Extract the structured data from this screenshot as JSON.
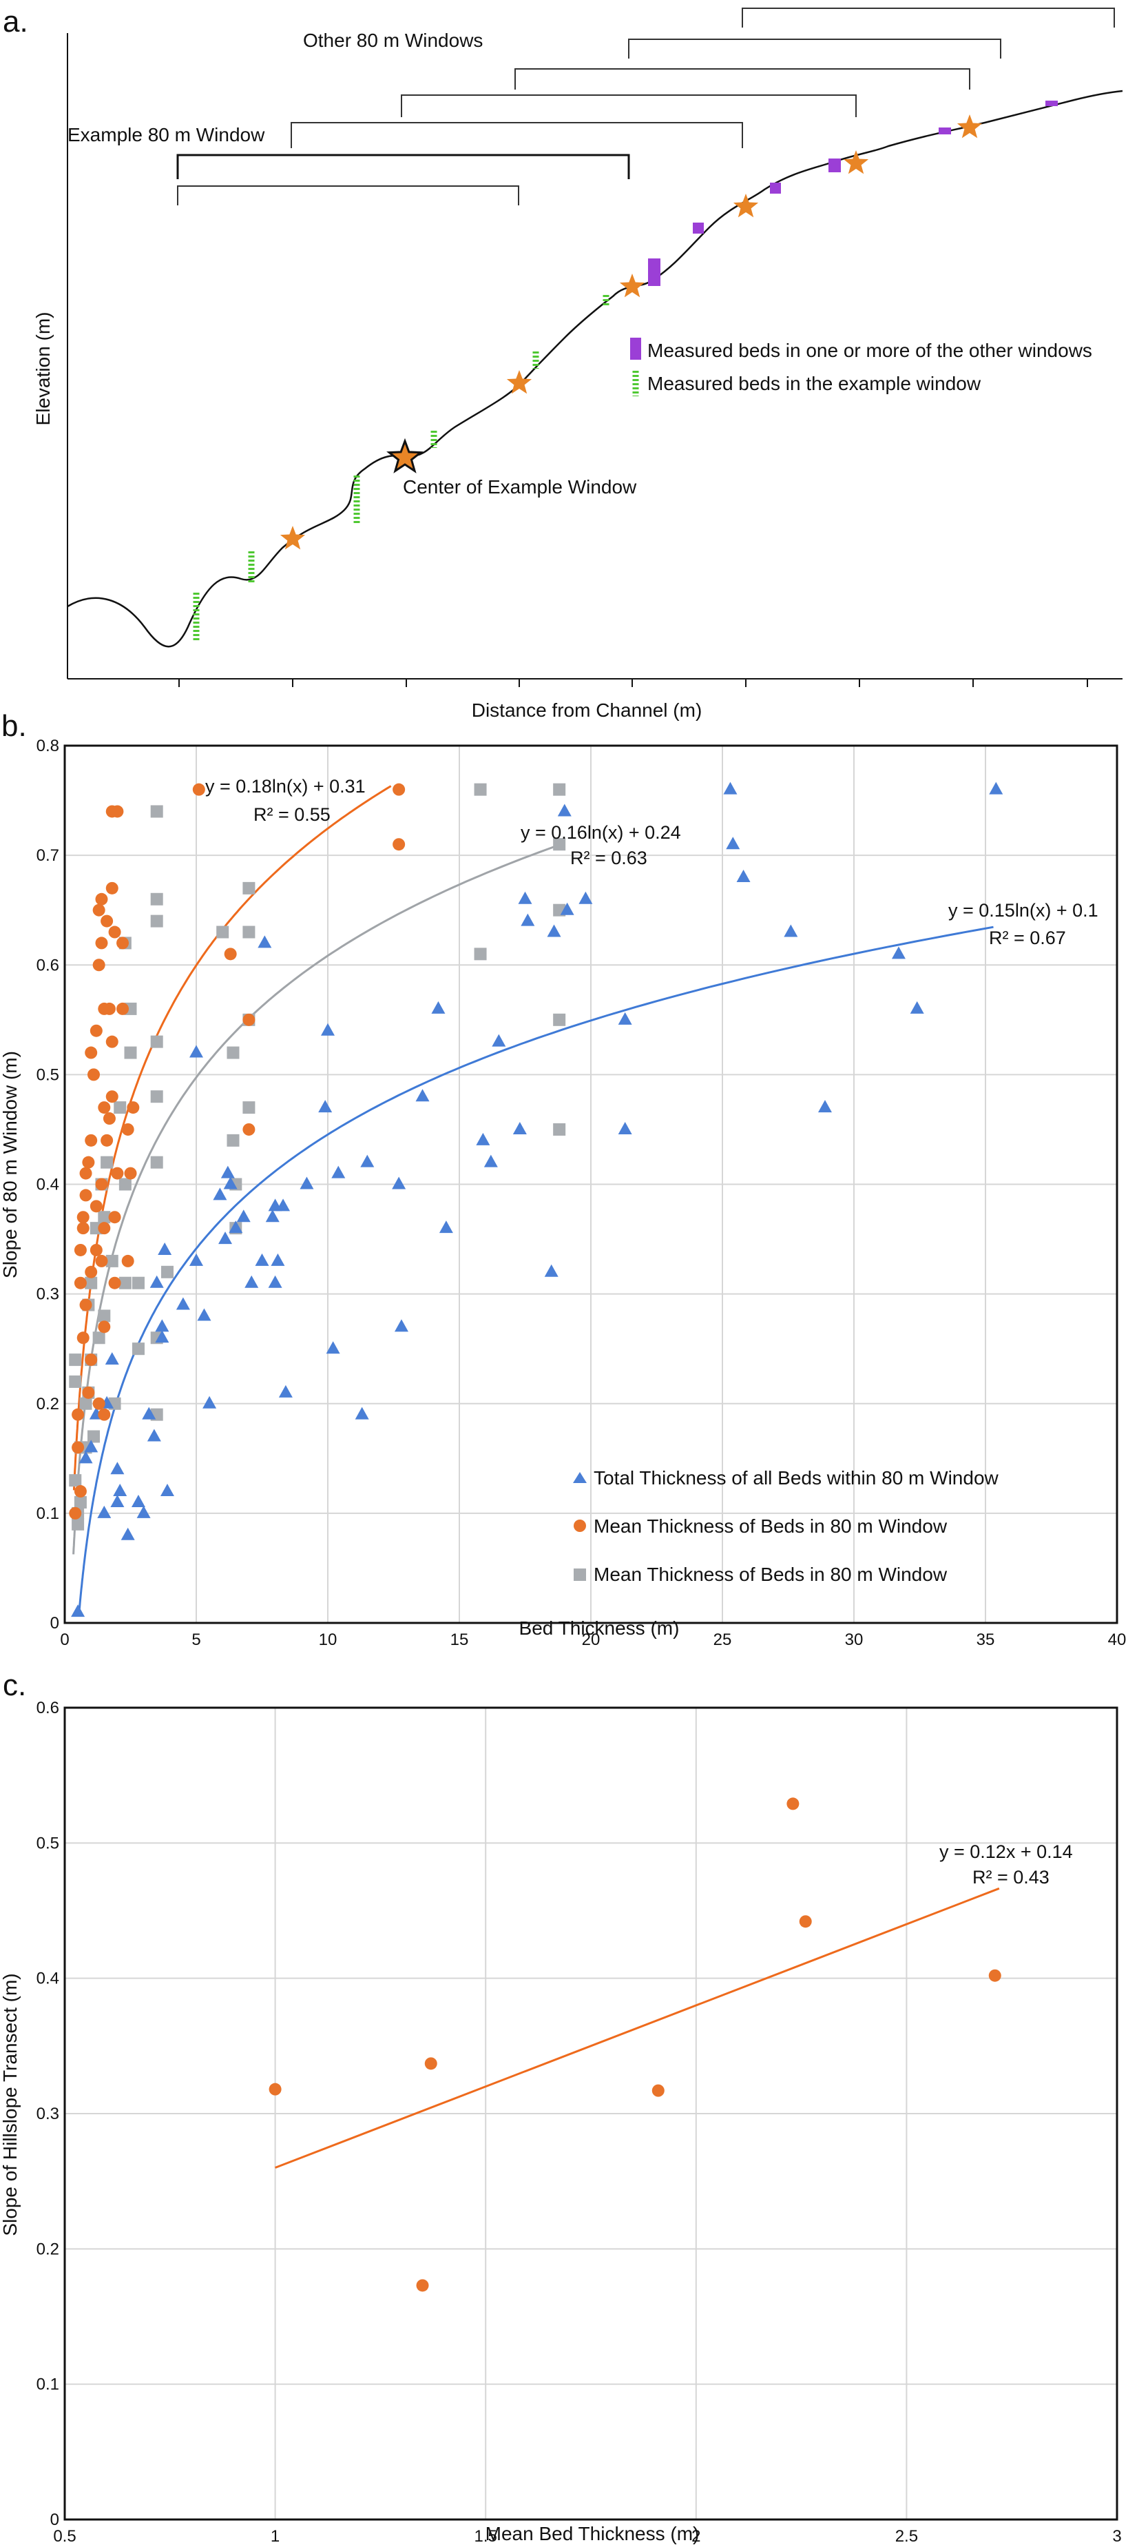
{
  "chart_data": [
    {
      "panel": "a.",
      "type": "diagram",
      "xlabel": "Distance from Channel (m)",
      "ylabel": "Elevation (m)",
      "labels": {
        "other_windows": "Other 80 m Windows",
        "example_window": "Example 80 m Window",
        "center_label": "Center of Example Window"
      },
      "legend": [
        {
          "label": "Measured beds in one or more of the other windows",
          "color": "#9b3fd6"
        },
        {
          "label": "Measured beds in the example window",
          "color": "#4fc832"
        }
      ],
      "colors": {
        "star": "#e88526",
        "purple": "#9b3fd6",
        "green": "#4fc832"
      }
    },
    {
      "panel": "b.",
      "type": "scatter",
      "xlabel": "Bed Thickness (m)",
      "ylabel": "Slope of 80 m Window (m)",
      "xlim": [
        0,
        40
      ],
      "ylim": [
        0,
        0.8
      ],
      "xticks": [
        "0",
        "5",
        "10",
        "15",
        "20",
        "25",
        "30",
        "35",
        "40"
      ],
      "yticks": [
        "0",
        "0.1",
        "0.2",
        "0.3",
        "0.4",
        "0.5",
        "0.6",
        "0.7",
        "0.8"
      ],
      "grid": true,
      "legend_position": "bottom-right",
      "series": [
        {
          "name": "Total Thickness of all Beds within 80 m Window",
          "marker": "triangle",
          "color": "#4a7fd6",
          "fit": {
            "a": 0.15,
            "b": 0.1,
            "label": "y = 0.15ln(x) + 0.1",
            "r2": "R² = 0.67"
          },
          "points": [
            [
              0.5,
              0.01
            ],
            [
              0.8,
              0.15
            ],
            [
              1.0,
              0.16
            ],
            [
              1.2,
              0.19
            ],
            [
              1.5,
              0.1
            ],
            [
              1.6,
              0.2
            ],
            [
              1.8,
              0.24
            ],
            [
              2.0,
              0.11
            ],
            [
              2.1,
              0.12
            ],
            [
              2.0,
              0.14
            ],
            [
              2.4,
              0.08
            ],
            [
              2.8,
              0.11
            ],
            [
              3.0,
              0.1
            ],
            [
              3.2,
              0.19
            ],
            [
              3.4,
              0.17
            ],
            [
              3.5,
              0.31
            ],
            [
              3.7,
              0.26
            ],
            [
              3.7,
              0.27
            ],
            [
              3.8,
              0.34
            ],
            [
              3.9,
              0.12
            ],
            [
              4.5,
              0.29
            ],
            [
              5.0,
              0.33
            ],
            [
              5.0,
              0.52
            ],
            [
              5.3,
              0.28
            ],
            [
              5.5,
              0.2
            ],
            [
              5.9,
              0.39
            ],
            [
              6.1,
              0.35
            ],
            [
              6.2,
              0.41
            ],
            [
              6.3,
              0.4
            ],
            [
              6.5,
              0.36
            ],
            [
              6.8,
              0.37
            ],
            [
              7.1,
              0.31
            ],
            [
              7.5,
              0.33
            ],
            [
              7.6,
              0.62
            ],
            [
              7.9,
              0.37
            ],
            [
              8.0,
              0.38
            ],
            [
              8.0,
              0.31
            ],
            [
              8.1,
              0.33
            ],
            [
              8.3,
              0.38
            ],
            [
              8.4,
              0.21
            ],
            [
              9.2,
              0.4
            ],
            [
              9.9,
              0.47
            ],
            [
              10.0,
              0.54
            ],
            [
              10.2,
              0.25
            ],
            [
              10.4,
              0.41
            ],
            [
              11.3,
              0.19
            ],
            [
              11.5,
              0.42
            ],
            [
              12.7,
              0.4
            ],
            [
              12.8,
              0.27
            ],
            [
              13.6,
              0.48
            ],
            [
              14.2,
              0.56
            ],
            [
              14.5,
              0.36
            ],
            [
              15.9,
              0.44
            ],
            [
              16.2,
              0.42
            ],
            [
              16.5,
              0.53
            ],
            [
              17.3,
              0.45
            ],
            [
              17.5,
              0.66
            ],
            [
              17.6,
              0.64
            ],
            [
              18.5,
              0.32
            ],
            [
              18.6,
              0.63
            ],
            [
              19.0,
              0.74
            ],
            [
              19.1,
              0.65
            ],
            [
              19.8,
              0.66
            ],
            [
              21.3,
              0.45
            ],
            [
              21.3,
              0.55
            ],
            [
              25.3,
              0.76
            ],
            [
              25.4,
              0.71
            ],
            [
              25.8,
              0.68
            ],
            [
              27.6,
              0.63
            ],
            [
              28.9,
              0.47
            ],
            [
              31.7,
              0.61
            ],
            [
              32.4,
              0.56
            ],
            [
              35.4,
              0.76
            ]
          ]
        },
        {
          "name": "Mean Thickness  of Beds in 80 m Window",
          "marker": "circle",
          "color": "#e8732a",
          "fit": {
            "a": 0.18,
            "b": 0.31,
            "label": "y = 0.18ln(x) + 0.31",
            "r2": "R² = 0.55"
          },
          "points": [
            [
              0.4,
              0.1
            ],
            [
              0.5,
              0.16
            ],
            [
              0.5,
              0.19
            ],
            [
              0.6,
              0.12
            ],
            [
              0.6,
              0.31
            ],
            [
              0.6,
              0.34
            ],
            [
              0.7,
              0.26
            ],
            [
              0.7,
              0.36
            ],
            [
              0.7,
              0.37
            ],
            [
              0.8,
              0.39
            ],
            [
              0.8,
              0.41
            ],
            [
              0.8,
              0.29
            ],
            [
              0.9,
              0.21
            ],
            [
              0.9,
              0.42
            ],
            [
              1.0,
              0.32
            ],
            [
              1.0,
              0.44
            ],
            [
              1.0,
              0.52
            ],
            [
              1.0,
              0.24
            ],
            [
              1.1,
              0.5
            ],
            [
              1.2,
              0.34
            ],
            [
              1.2,
              0.38
            ],
            [
              1.2,
              0.54
            ],
            [
              1.3,
              0.6
            ],
            [
              1.3,
              0.65
            ],
            [
              1.3,
              0.2
            ],
            [
              1.4,
              0.33
            ],
            [
              1.4,
              0.4
            ],
            [
              1.4,
              0.62
            ],
            [
              1.4,
              0.66
            ],
            [
              1.5,
              0.19
            ],
            [
              1.5,
              0.27
            ],
            [
              1.5,
              0.36
            ],
            [
              1.5,
              0.47
            ],
            [
              1.5,
              0.56
            ],
            [
              1.6,
              0.44
            ],
            [
              1.6,
              0.64
            ],
            [
              1.7,
              0.46
            ],
            [
              1.7,
              0.56
            ],
            [
              1.8,
              0.48
            ],
            [
              1.8,
              0.53
            ],
            [
              1.8,
              0.67
            ],
            [
              1.8,
              0.74
            ],
            [
              1.9,
              0.31
            ],
            [
              1.9,
              0.37
            ],
            [
              1.9,
              0.63
            ],
            [
              2.0,
              0.41
            ],
            [
              2.0,
              0.74
            ],
            [
              2.2,
              0.56
            ],
            [
              2.2,
              0.62
            ],
            [
              2.4,
              0.33
            ],
            [
              2.4,
              0.45
            ],
            [
              2.5,
              0.41
            ],
            [
              2.6,
              0.47
            ],
            [
              5.1,
              0.76
            ],
            [
              6.3,
              0.61
            ],
            [
              7.0,
              0.45
            ],
            [
              7.0,
              0.55
            ],
            [
              12.7,
              0.76
            ],
            [
              12.7,
              0.71
            ]
          ]
        },
        {
          "name": "Mean Thickness  of Beds in 80 m Window",
          "marker": "square",
          "color": "#a8acb0",
          "fit": {
            "a": 0.16,
            "b": 0.24,
            "label": "y = 0.16ln(x) + 0.24",
            "r2": "R² = 0.63"
          },
          "points": [
            [
              0.4,
              0.13
            ],
            [
              0.4,
              0.22
            ],
            [
              0.4,
              0.24
            ],
            [
              0.5,
              0.09
            ],
            [
              0.5,
              0.1
            ],
            [
              0.6,
              0.11
            ],
            [
              0.6,
              0.16
            ],
            [
              0.8,
              0.16
            ],
            [
              0.8,
              0.2
            ],
            [
              0.9,
              0.21
            ],
            [
              0.9,
              0.29
            ],
            [
              1.0,
              0.31
            ],
            [
              1.0,
              0.24
            ],
            [
              1.1,
              0.17
            ],
            [
              1.2,
              0.36
            ],
            [
              1.3,
              0.26
            ],
            [
              1.4,
              0.4
            ],
            [
              1.5,
              0.28
            ],
            [
              1.5,
              0.37
            ],
            [
              1.6,
              0.42
            ],
            [
              1.8,
              0.33
            ],
            [
              1.9,
              0.2
            ],
            [
              2.1,
              0.47
            ],
            [
              2.3,
              0.31
            ],
            [
              2.3,
              0.4
            ],
            [
              2.3,
              0.62
            ],
            [
              2.5,
              0.52
            ],
            [
              2.5,
              0.56
            ],
            [
              2.8,
              0.25
            ],
            [
              2.8,
              0.31
            ],
            [
              3.5,
              0.19
            ],
            [
              3.5,
              0.26
            ],
            [
              3.5,
              0.42
            ],
            [
              3.5,
              0.48
            ],
            [
              3.5,
              0.53
            ],
            [
              3.5,
              0.64
            ],
            [
              3.5,
              0.66
            ],
            [
              3.5,
              0.74
            ],
            [
              3.9,
              0.32
            ],
            [
              6.0,
              0.63
            ],
            [
              6.4,
              0.44
            ],
            [
              6.4,
              0.52
            ],
            [
              6.5,
              0.36
            ],
            [
              6.5,
              0.4
            ],
            [
              7.0,
              0.47
            ],
            [
              7.0,
              0.55
            ],
            [
              7.0,
              0.63
            ],
            [
              7.0,
              0.67
            ],
            [
              15.8,
              0.61
            ],
            [
              15.8,
              0.76
            ],
            [
              18.8,
              0.45
            ],
            [
              18.8,
              0.55
            ],
            [
              18.8,
              0.65
            ],
            [
              18.8,
              0.71
            ],
            [
              18.8,
              0.76
            ]
          ]
        }
      ]
    },
    {
      "panel": "c.",
      "type": "scatter",
      "xlabel": "Mean Bed Thickness (m)",
      "ylabel": "Slope of Hillslope Transect (m)",
      "xlim": [
        0.5,
        3
      ],
      "ylim": [
        0,
        0.6
      ],
      "xticks": [
        "0.5",
        "1",
        "1.5",
        "2",
        "2.5",
        "3"
      ],
      "yticks": [
        "0",
        "0.1",
        "0.2",
        "0.3",
        "0.4",
        "0.5",
        "0.6"
      ],
      "grid": true,
      "series": [
        {
          "marker": "circle",
          "color": "#e8732a",
          "fit": {
            "slope": 0.12,
            "intercept": 0.14,
            "x_range": [
              1.0,
              2.72
            ],
            "label": "y = 0.12x + 0.14",
            "r2": "R² = 0.43"
          },
          "points": [
            [
              1.0,
              0.318
            ],
            [
              1.35,
              0.173
            ],
            [
              1.37,
              0.337
            ],
            [
              1.91,
              0.317
            ],
            [
              2.23,
              0.529
            ],
            [
              2.26,
              0.442
            ],
            [
              2.71,
              0.402
            ]
          ]
        }
      ]
    }
  ]
}
